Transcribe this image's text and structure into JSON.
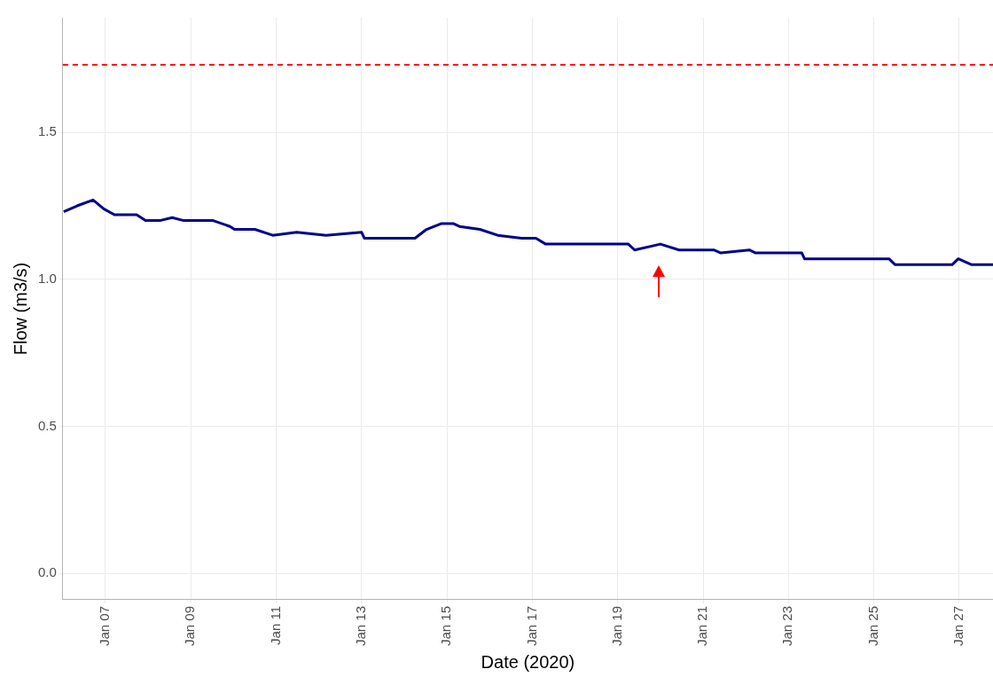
{
  "chart_data": {
    "type": "line",
    "xlabel": "Date (2020)",
    "ylabel": "Flow (m3/s)",
    "x": [
      "2020-01-06T00:30",
      "2020-01-06T08:00",
      "2020-01-06T17:00",
      "2020-01-06T23:00",
      "2020-01-07T05:00",
      "2020-01-07T17:30",
      "2020-01-07T22:30",
      "2020-01-08T06:30",
      "2020-01-08T13:30",
      "2020-01-08T20:00",
      "2020-01-09T04:30",
      "2020-01-09T12:30",
      "2020-01-09T22:00",
      "2020-01-10T00:30",
      "2020-01-10T12:00",
      "2020-01-10T22:00",
      "2020-01-11T11:30",
      "2020-01-12T04:00",
      "2020-01-13T00:00",
      "2020-01-13T01:30",
      "2020-01-14T06:00",
      "2020-01-14T12:30",
      "2020-01-14T21:00",
      "2020-01-15T03:30",
      "2020-01-15T07:00",
      "2020-01-15T18:30",
      "2020-01-16T04:30",
      "2020-01-16T18:00",
      "2020-01-17T02:00",
      "2020-01-17T07:30",
      "2020-01-17T18:30",
      "2020-01-19T06:00",
      "2020-01-19T09:30",
      "2020-01-20T00:00",
      "2020-01-20T10:30",
      "2020-01-21T06:00",
      "2020-01-21T10:00",
      "2020-01-22T02:00",
      "2020-01-22T05:30",
      "2020-01-23T07:30",
      "2020-01-23T09:00",
      "2020-01-24T07:30",
      "2020-01-25T08:30",
      "2020-01-25T12:00",
      "2020-01-26T20:00",
      "2020-01-26T23:30",
      "2020-01-27T07:00",
      "2020-01-27T19:00"
    ],
    "series": [
      {
        "color": "#00008b",
        "values": [
          1.23,
          1.25,
          1.27,
          1.24,
          1.22,
          1.22,
          1.2,
          1.2,
          1.21,
          1.2,
          1.2,
          1.2,
          1.18,
          1.17,
          1.17,
          1.15,
          1.16,
          1.15,
          1.16,
          1.14,
          1.14,
          1.17,
          1.19,
          1.19,
          1.18,
          1.17,
          1.15,
          1.14,
          1.14,
          1.12,
          1.12,
          1.12,
          1.1,
          1.12,
          1.1,
          1.1,
          1.09,
          1.1,
          1.09,
          1.09,
          1.07,
          1.07,
          1.07,
          1.05,
          1.05,
          1.07,
          1.05,
          1.05
        ]
      }
    ],
    "xlim": [
      "2020-01-06T00:00",
      "2020-01-27T19:00"
    ],
    "xticks": [
      {
        "value": "2020-01-07",
        "label": "Jan 07"
      },
      {
        "value": "2020-01-09",
        "label": "Jan 09"
      },
      {
        "value": "2020-01-11",
        "label": "Jan 11"
      },
      {
        "value": "2020-01-13",
        "label": "Jan 13"
      },
      {
        "value": "2020-01-15",
        "label": "Jan 15"
      },
      {
        "value": "2020-01-17",
        "label": "Jan 17"
      },
      {
        "value": "2020-01-19",
        "label": "Jan 19"
      },
      {
        "value": "2020-01-21",
        "label": "Jan 21"
      },
      {
        "value": "2020-01-23",
        "label": "Jan 23"
      },
      {
        "value": "2020-01-25",
        "label": "Jan 25"
      },
      {
        "value": "2020-01-27",
        "label": "Jan 27"
      }
    ],
    "ylim": [
      -0.09,
      1.89
    ],
    "yticks": [
      {
        "value": 0,
        "label": "0.0"
      },
      0.5,
      {
        "value": 1,
        "label": "1.0"
      },
      1.5
    ],
    "ref_lines": [
      {
        "axis": "y",
        "value": 1.73,
        "color": "#ff0000",
        "line_style": "dashed"
      }
    ],
    "grid": true,
    "legend": false,
    "marker": "none",
    "line_style": "solid"
  }
}
